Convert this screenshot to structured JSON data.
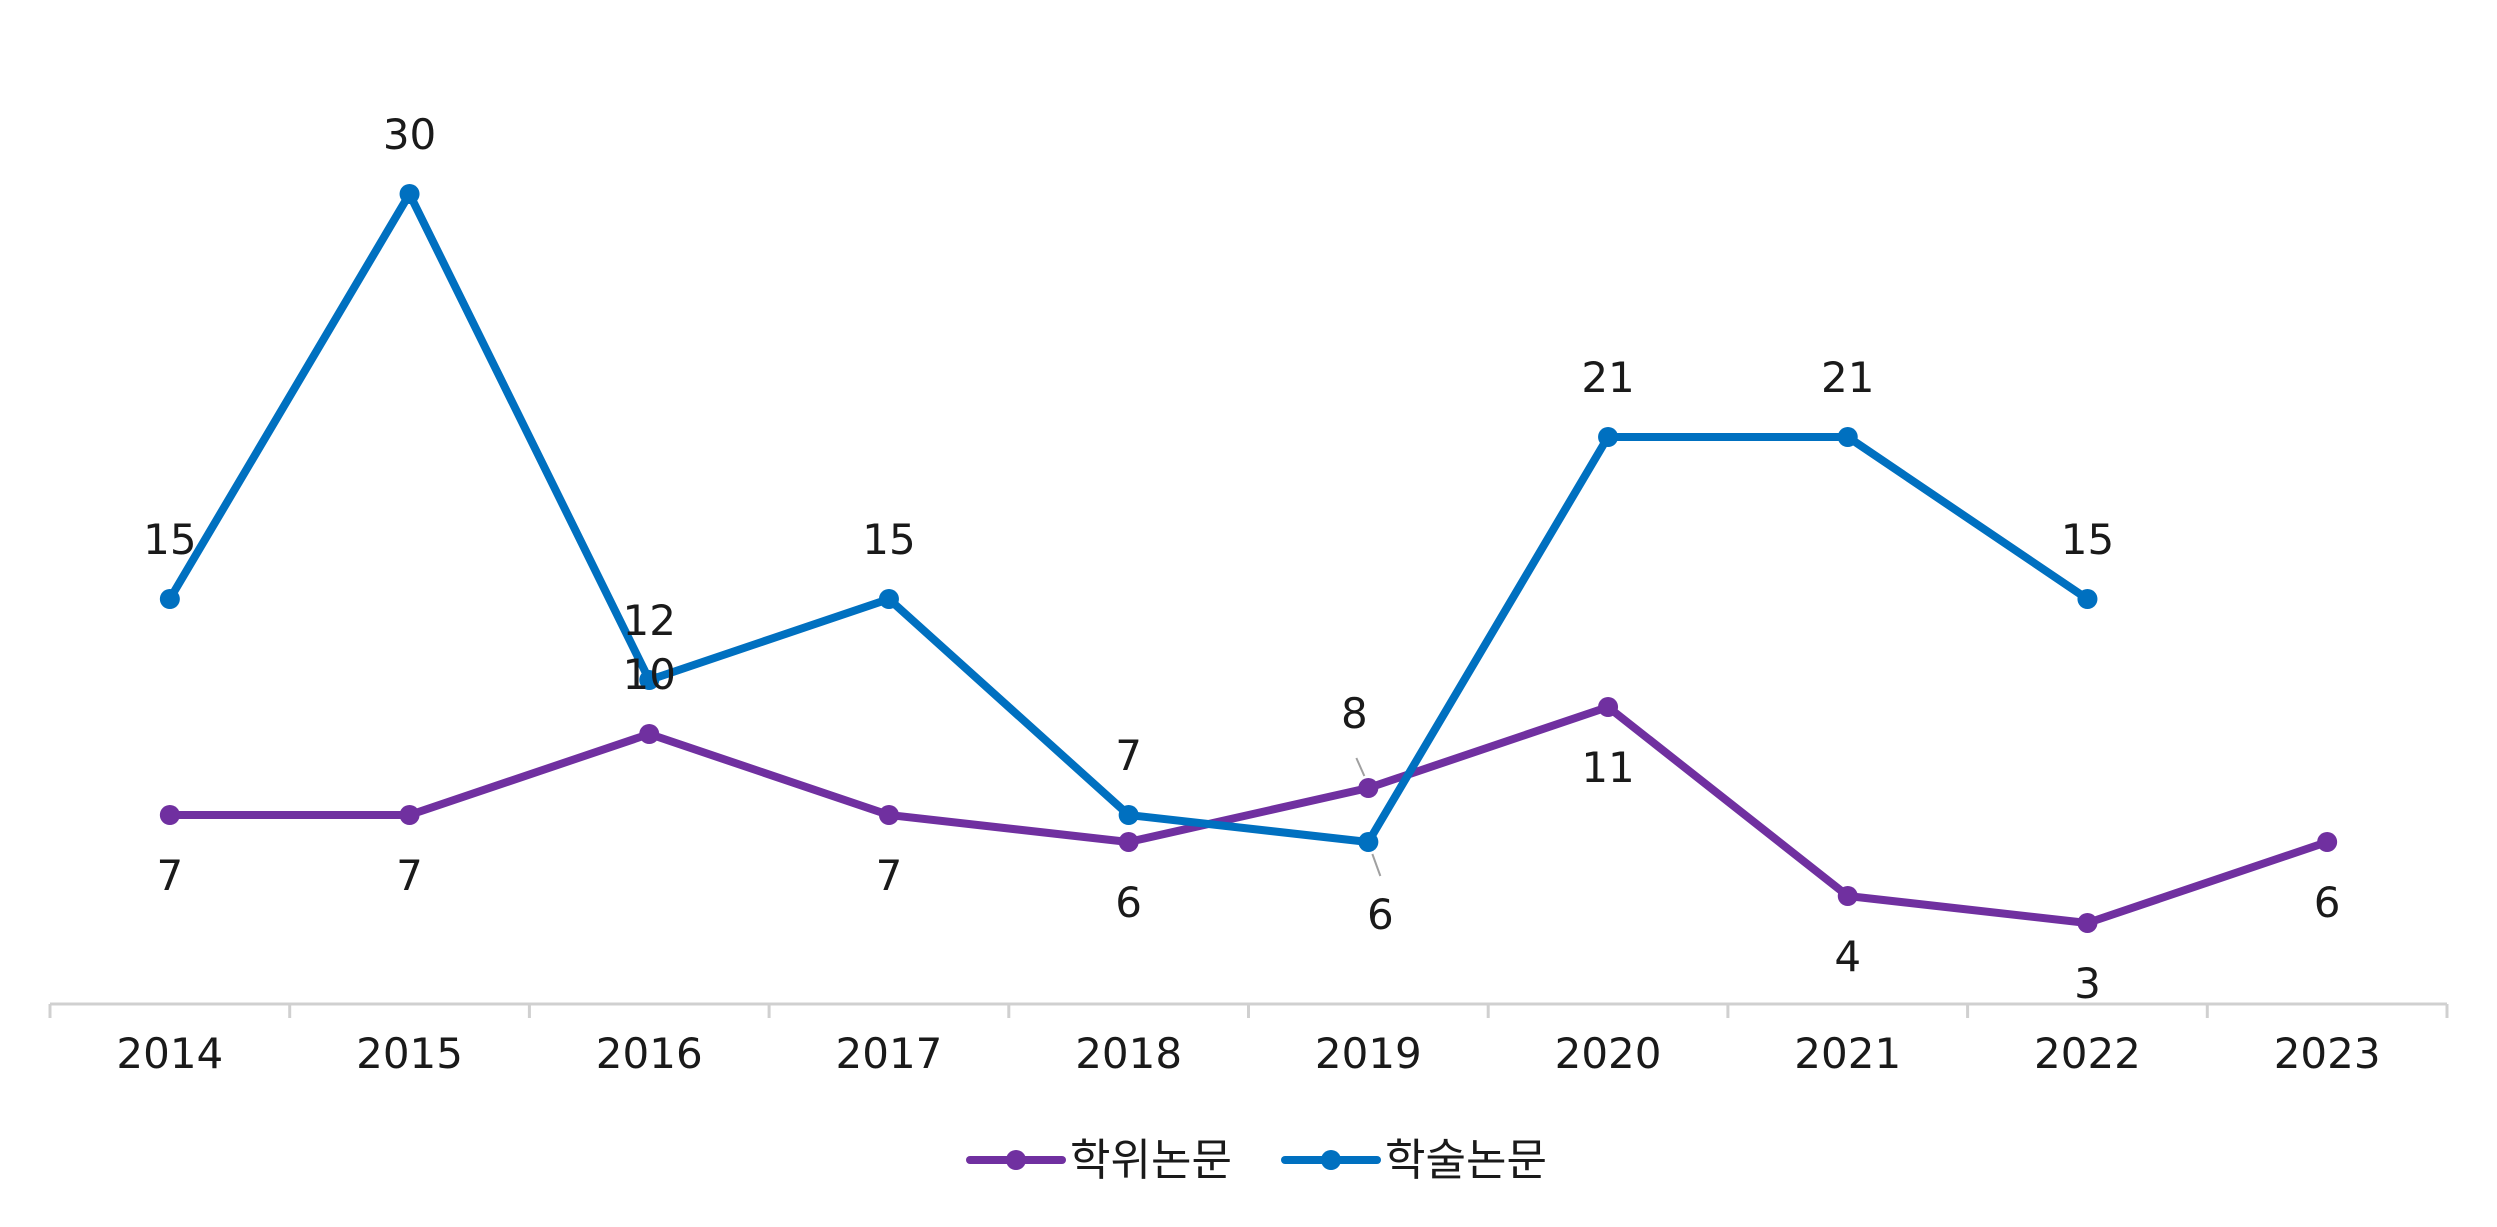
{
  "chart_data": {
    "type": "line",
    "title": "",
    "xlabel": "",
    "ylabel": "",
    "categories": [
      "2014",
      "2015",
      "2016",
      "2017",
      "2018",
      "2019",
      "2020",
      "2021",
      "2022",
      "2023"
    ],
    "ylim": [
      0,
      30
    ],
    "grid": false,
    "legend_position": "bottom",
    "series": [
      {
        "name": "학위논문",
        "color": "#7030A0",
        "values": [
          7,
          7,
          10,
          7,
          6,
          8,
          11,
          4,
          3,
          6
        ]
      },
      {
        "name": "학술논문",
        "color": "#0070C0",
        "values": [
          15,
          30,
          12,
          15,
          7,
          6,
          21,
          21,
          15,
          null
        ]
      }
    ]
  }
}
